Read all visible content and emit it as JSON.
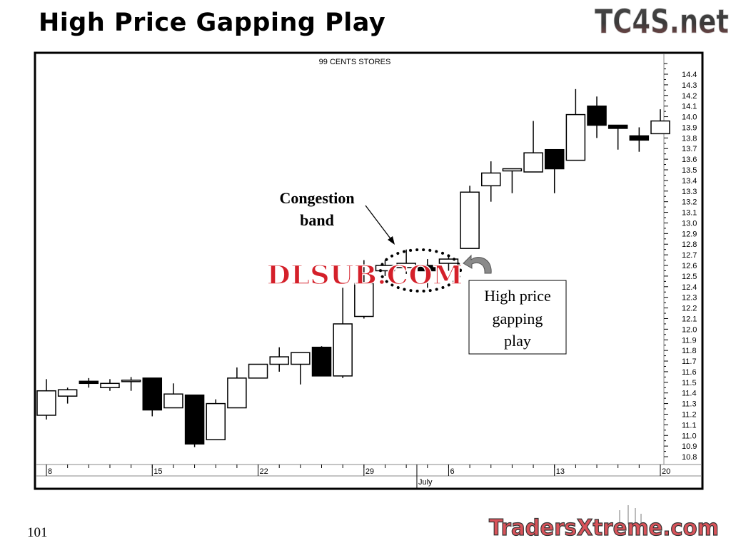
{
  "slide": {
    "title": "High Price Gapping Play",
    "page_number": "101",
    "logo_top": "TC4S.net",
    "logo_bottom": "TradersXtreme.com",
    "watermark": "DLSUB.COM"
  },
  "chart_data": {
    "type": "candlestick",
    "title": "99 CENTS STORES",
    "ylim": [
      10.8,
      14.4
    ],
    "y_ticks": [
      "10.8",
      "10.9",
      "11.0",
      "11.1",
      "11.2",
      "11.3",
      "11.4",
      "11.5",
      "11.6",
      "11.7",
      "11.8",
      "11.9",
      "12.0",
      "12.1",
      "12.2",
      "12.3",
      "12.4",
      "12.5",
      "12.6",
      "12.7",
      "12.8",
      "12.9",
      "13.0",
      "13.1",
      "13.2",
      "13.3",
      "13.4",
      "13.5",
      "13.6",
      "13.7",
      "13.8",
      "13.9",
      "14.0",
      "14.1",
      "14.2",
      "14.3",
      "14.4"
    ],
    "x_day_labels": [
      {
        "index": 0,
        "label": "8"
      },
      {
        "index": 5,
        "label": "15"
      },
      {
        "index": 10,
        "label": "22"
      },
      {
        "index": 15,
        "label": "29"
      },
      {
        "index": 19,
        "label": "6"
      },
      {
        "index": 24,
        "label": "13"
      },
      {
        "index": 29,
        "label": "20"
      }
    ],
    "x_month_labels": [
      {
        "index": 17.5,
        "label": "July"
      }
    ],
    "candles": [
      {
        "o": 11.19,
        "h": 11.53,
        "l": 11.15,
        "c": 11.42
      },
      {
        "o": 11.37,
        "h": 11.45,
        "l": 11.3,
        "c": 11.43
      },
      {
        "o": 11.51,
        "h": 11.54,
        "l": 11.45,
        "c": 11.49
      },
      {
        "o": 11.45,
        "h": 11.53,
        "l": 11.42,
        "c": 11.49
      },
      {
        "o": 11.51,
        "h": 11.55,
        "l": 11.42,
        "c": 11.52
      },
      {
        "o": 11.54,
        "h": 11.54,
        "l": 11.18,
        "c": 11.24
      },
      {
        "o": 11.26,
        "h": 11.49,
        "l": 11.26,
        "c": 11.39
      },
      {
        "o": 11.38,
        "h": 11.38,
        "l": 10.89,
        "c": 10.92
      },
      {
        "o": 10.96,
        "h": 11.34,
        "l": 10.96,
        "c": 11.3
      },
      {
        "o": 11.26,
        "h": 11.64,
        "l": 11.26,
        "c": 11.54
      },
      {
        "o": 11.54,
        "h": 11.67,
        "l": 11.54,
        "c": 11.67
      },
      {
        "o": 11.67,
        "h": 11.83,
        "l": 11.6,
        "c": 11.74
      },
      {
        "o": 11.67,
        "h": 11.78,
        "l": 11.48,
        "c": 11.78
      },
      {
        "o": 11.83,
        "h": 11.84,
        "l": 11.56,
        "c": 11.56
      },
      {
        "o": 11.56,
        "h": 12.39,
        "l": 11.54,
        "c": 12.05
      },
      {
        "o": 12.12,
        "h": 12.65,
        "l": 12.1,
        "c": 12.43
      },
      {
        "o": 12.55,
        "h": 12.65,
        "l": 12.5,
        "c": 12.6
      },
      {
        "o": 12.58,
        "h": 12.75,
        "l": 12.52,
        "c": 12.62
      },
      {
        "o": 12.6,
        "h": 12.66,
        "l": 12.39,
        "c": 12.55
      },
      {
        "o": 12.62,
        "h": 12.7,
        "l": 12.55,
        "c": 12.66
      },
      {
        "o": 12.76,
        "h": 13.35,
        "l": 12.76,
        "c": 13.29
      },
      {
        "o": 13.35,
        "h": 13.58,
        "l": 13.2,
        "c": 13.47
      },
      {
        "o": 13.49,
        "h": 13.51,
        "l": 13.28,
        "c": 13.51
      },
      {
        "o": 13.48,
        "h": 13.96,
        "l": 13.48,
        "c": 13.66
      },
      {
        "o": 13.69,
        "h": 13.69,
        "l": 13.28,
        "c": 13.51
      },
      {
        "o": 13.59,
        "h": 14.26,
        "l": 13.59,
        "c": 14.02
      },
      {
        "o": 14.1,
        "h": 14.19,
        "l": 13.8,
        "c": 13.92
      },
      {
        "o": 13.92,
        "h": 13.92,
        "l": 13.69,
        "c": 13.89
      },
      {
        "o": 13.82,
        "h": 13.9,
        "l": 13.67,
        "c": 13.78
      },
      {
        "o": 13.84,
        "h": 14.07,
        "l": 13.84,
        "c": 13.96
      }
    ],
    "annotations": {
      "congestion_line1": "Congestion",
      "congestion_line2": "band",
      "gap_line1": "High price",
      "gap_line2": "gapping",
      "gap_line3": "play"
    },
    "colors": {
      "up": "#ffffff",
      "down": "#000000",
      "watermark": "#d4202a",
      "arrow": "#8a8a8a"
    }
  }
}
